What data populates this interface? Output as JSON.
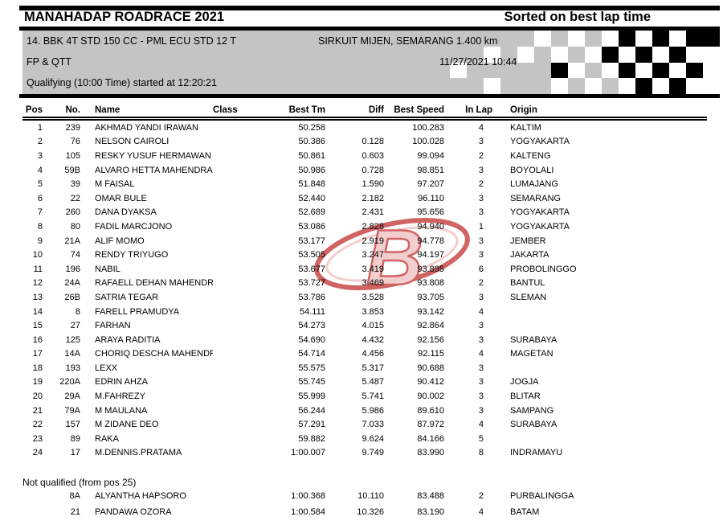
{
  "header": {
    "title": "MANAHADAP ROADRACE 2021",
    "sort_label": "Sorted on best lap time"
  },
  "event": {
    "class_line": "14. BBK 4T STD 150 CC - PML ECU STD 12 T",
    "circuit": "SIRKUIT MIJEN, SEMARANG 1.400 km",
    "session": "FP & QTT",
    "datetime": "11/27/2021 10:44",
    "status_line": "Qualifying (10:00 Time) started at 12:20:21"
  },
  "flag": {
    "legend": {
      "G": "band-gray",
      "W": "white",
      "K": "black"
    },
    "rows": [
      "GGGGGWGWGWKWKWKK",
      "GGWGWGWGWKWKWKWW",
      "WGGGGGKWGWKWKWKW",
      "GGWGGGWGWGWKWKWW"
    ]
  },
  "watermark": {
    "letter": "B"
  },
  "colors": {
    "band_gray": "#c4c4c4",
    "rule_black": "#000000",
    "watermark_red": "#c94848",
    "watermark_pink": "#f2c6c6"
  },
  "table": {
    "columns": [
      "Pos",
      "No.",
      "Name",
      "Class",
      "Best Tm",
      "Diff",
      "Best Speed",
      "In Lap",
      "Origin"
    ],
    "rows": [
      {
        "pos": "1",
        "no": "239",
        "name": "AKHMAD YANDI IRAWAN",
        "cls": "",
        "best": "50.258",
        "diff": "",
        "speed": "100.283",
        "lap": "4",
        "origin": "KALTIM"
      },
      {
        "pos": "2",
        "no": "76",
        "name": "NELSON CAIROLI",
        "cls": "",
        "best": "50.386",
        "diff": "0.128",
        "speed": "100.028",
        "lap": "3",
        "origin": "YOGYAKARTA"
      },
      {
        "pos": "3",
        "no": "105",
        "name": "RESKY YUSUF HERMAWAN",
        "cls": "",
        "best": "50.861",
        "diff": "0.603",
        "speed": "99.094",
        "lap": "2",
        "origin": "KALTENG"
      },
      {
        "pos": "4",
        "no": "59B",
        "name": "ALVARO HETTA MAHENDRA",
        "cls": "",
        "best": "50.986",
        "diff": "0.728",
        "speed": "98.851",
        "lap": "3",
        "origin": "BOYOLALI"
      },
      {
        "pos": "5",
        "no": "39",
        "name": "M FAISAL",
        "cls": "",
        "best": "51.848",
        "diff": "1.590",
        "speed": "97.207",
        "lap": "2",
        "origin": "LUMAJANG"
      },
      {
        "pos": "6",
        "no": "22",
        "name": "OMAR BULE",
        "cls": "",
        "best": "52.440",
        "diff": "2.182",
        "speed": "96.110",
        "lap": "3",
        "origin": "SEMARANG"
      },
      {
        "pos": "7",
        "no": "260",
        "name": "DANA DYAKSA",
        "cls": "",
        "best": "52.689",
        "diff": "2.431",
        "speed": "95.656",
        "lap": "3",
        "origin": "YOGYAKARTA"
      },
      {
        "pos": "8",
        "no": "80",
        "name": "FADIL MARCJONO",
        "cls": "",
        "best": "53.086",
        "diff": "2.828",
        "speed": "94.940",
        "lap": "1",
        "origin": "YOGYAKARTA"
      },
      {
        "pos": "9",
        "no": "21A",
        "name": "ALIF MOMO",
        "cls": "",
        "best": "53.177",
        "diff": "2.919",
        "speed": "94.778",
        "lap": "3",
        "origin": "JEMBER"
      },
      {
        "pos": "10",
        "no": "74",
        "name": "RENDY TRIYUGO",
        "cls": "",
        "best": "53.505",
        "diff": "3.247",
        "speed": "94.197",
        "lap": "3",
        "origin": "JAKARTA"
      },
      {
        "pos": "11",
        "no": "196",
        "name": "NABIL",
        "cls": "",
        "best": "53.677",
        "diff": "3.419",
        "speed": "93.895",
        "lap": "6",
        "origin": "PROBOLINGGO"
      },
      {
        "pos": "12",
        "no": "24A",
        "name": "RAFAELL DEHAN MAHENDRA",
        "cls": "",
        "best": "53.727",
        "diff": "3.469",
        "speed": "93.808",
        "lap": "2",
        "origin": "BANTUL"
      },
      {
        "pos": "13",
        "no": "26B",
        "name": "SATRIA TEGAR",
        "cls": "",
        "best": "53.786",
        "diff": "3.528",
        "speed": "93.705",
        "lap": "3",
        "origin": "SLEMAN"
      },
      {
        "pos": "14",
        "no": "8",
        "name": "FARELL PRAMUDYA",
        "cls": "",
        "best": "54.111",
        "diff": "3.853",
        "speed": "93.142",
        "lap": "4",
        "origin": ""
      },
      {
        "pos": "15",
        "no": "27",
        "name": "FARHAN",
        "cls": "",
        "best": "54.273",
        "diff": "4.015",
        "speed": "92.864",
        "lap": "3",
        "origin": ""
      },
      {
        "pos": "16",
        "no": "125",
        "name": "ARAYA RADITIA",
        "cls": "",
        "best": "54.690",
        "diff": "4.432",
        "speed": "92.156",
        "lap": "3",
        "origin": "SURABAYA"
      },
      {
        "pos": "17",
        "no": "14A",
        "name": "CHORIQ DESCHA MAHENDRA",
        "cls": "",
        "best": "54.714",
        "diff": "4.456",
        "speed": "92.115",
        "lap": "4",
        "origin": "MAGETAN"
      },
      {
        "pos": "18",
        "no": "193",
        "name": "LEXX",
        "cls": "",
        "best": "55.575",
        "diff": "5.317",
        "speed": "90.688",
        "lap": "3",
        "origin": ""
      },
      {
        "pos": "19",
        "no": "220A",
        "name": "EDRIN AHZA",
        "cls": "",
        "best": "55.745",
        "diff": "5.487",
        "speed": "90.412",
        "lap": "3",
        "origin": "JOGJA"
      },
      {
        "pos": "20",
        "no": "29A",
        "name": "M.FAHREZY",
        "cls": "",
        "best": "55.999",
        "diff": "5.741",
        "speed": "90.002",
        "lap": "3",
        "origin": "BLITAR"
      },
      {
        "pos": "21",
        "no": "79A",
        "name": "M MAULANA",
        "cls": "",
        "best": "56.244",
        "diff": "5.986",
        "speed": "89.610",
        "lap": "3",
        "origin": "SAMPANG"
      },
      {
        "pos": "22",
        "no": "157",
        "name": "M ZIDANE DEO",
        "cls": "",
        "best": "57.291",
        "diff": "7.033",
        "speed": "87.972",
        "lap": "4",
        "origin": "SURABAYA"
      },
      {
        "pos": "23",
        "no": "89",
        "name": "RAKA",
        "cls": "",
        "best": "59.882",
        "diff": "9.624",
        "speed": "84.166",
        "lap": "5",
        "origin": ""
      },
      {
        "pos": "24",
        "no": "17",
        "name": "M.DENNIS.PRATAMA",
        "cls": "",
        "best": "1:00.007",
        "diff": "9.749",
        "speed": "83.990",
        "lap": "8",
        "origin": "INDRAMAYU"
      }
    ]
  },
  "not_qualified": {
    "label": "Not qualified (from pos 25)",
    "rows": [
      {
        "pos": "",
        "no": "8A",
        "name": "ALYANTHA HAPSORO",
        "cls": "",
        "best": "1:00.368",
        "diff": "10.110",
        "speed": "83.488",
        "lap": "2",
        "origin": "PURBALINGGA"
      },
      {
        "pos": "",
        "no": "21",
        "name": "PANDAWA OZORA",
        "cls": "",
        "best": "1:00.584",
        "diff": "10.326",
        "speed": "83.190",
        "lap": "4",
        "origin": "BATAM"
      }
    ]
  }
}
